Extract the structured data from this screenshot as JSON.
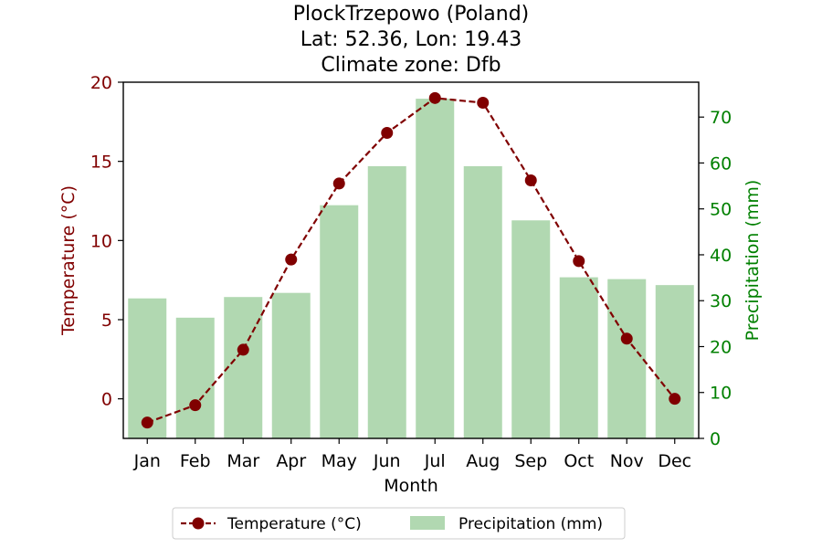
{
  "chart_data": {
    "type": "bar+line",
    "title_lines": [
      "PlockTrzepowo (Poland)",
      "Lat: 52.36, Lon: 19.43",
      "Climate zone: Dfb"
    ],
    "categories": [
      "Jan",
      "Feb",
      "Mar",
      "Apr",
      "May",
      "Jun",
      "Jul",
      "Aug",
      "Sep",
      "Oct",
      "Nov",
      "Dec"
    ],
    "xlabel": "Month",
    "temperature": {
      "name": "Temperature (°C)",
      "axis_label": "Temperature (°C)",
      "values": [
        -1.5,
        -0.4,
        3.1,
        8.8,
        13.6,
        16.8,
        19.0,
        18.7,
        13.8,
        8.7,
        3.8,
        0.0
      ],
      "ylim": [
        -2.5,
        20
      ],
      "ticks": [
        0,
        5,
        10,
        15,
        20
      ],
      "color": "#800000"
    },
    "precipitation": {
      "name": "Precipitation (mm)",
      "axis_label": "Precipitation (mm)",
      "values": [
        30.5,
        26.3,
        30.8,
        31.7,
        50.8,
        59.3,
        74.0,
        59.3,
        47.5,
        35.1,
        34.7,
        33.4
      ],
      "ylim": [
        0,
        77.6
      ],
      "ticks": [
        0,
        10,
        20,
        30,
        40,
        50,
        60,
        70
      ],
      "color": "#b1d8b1",
      "axis_color": "#008000"
    },
    "legend": {
      "placement": "bottom-center",
      "entries": [
        "Temperature (°C)",
        "Precipitation (mm)"
      ]
    },
    "grid": false
  }
}
